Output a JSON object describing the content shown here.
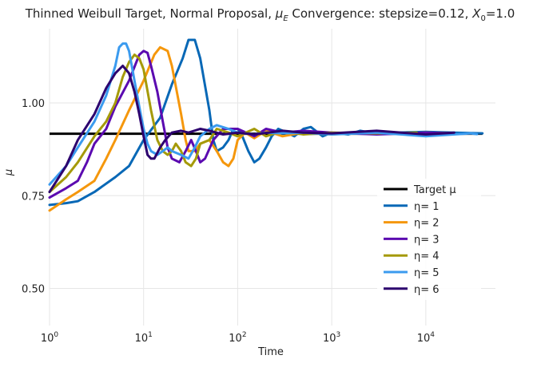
{
  "chart_data": {
    "type": "line",
    "title": {
      "prefix": "Thinned Weibull Target, Normal Proposal, ",
      "mu_symbol": "μ",
      "mu_subscript": "E",
      "middle": " Convergence: stepsize=0.12, ",
      "x_symbol": "X",
      "x_subscript": "0",
      "suffix": "=1.0"
    },
    "xlabel": "Time",
    "ylabel": "μ",
    "x_scale": "log",
    "xlim": [
      1,
      55000
    ],
    "ylim": [
      0.4,
      1.2
    ],
    "x_ticks": [
      {
        "value": 1,
        "base": "10",
        "exp": "0"
      },
      {
        "value": 10,
        "base": "10",
        "exp": "1"
      },
      {
        "value": 100,
        "base": "10",
        "exp": "2"
      },
      {
        "value": 1000,
        "base": "10",
        "exp": "3"
      },
      {
        "value": 10000,
        "base": "10",
        "exp": "4"
      }
    ],
    "y_ticks": [
      {
        "value": 0.5,
        "label": "0.50"
      },
      {
        "value": 0.75,
        "label": "0.75"
      },
      {
        "value": 1.0,
        "label": "1.00"
      }
    ],
    "grid": true,
    "legend_position": "lower-right",
    "target": {
      "name": "Target μ",
      "value": 0.917,
      "x_range": [
        1,
        40000
      ],
      "color": "#000000"
    },
    "series": [
      {
        "name": "η= 1",
        "color": "#0868b6",
        "points": [
          [
            1,
            0.725
          ],
          [
            1.5,
            0.73
          ],
          [
            2,
            0.735
          ],
          [
            3,
            0.76
          ],
          [
            5,
            0.8
          ],
          [
            7,
            0.83
          ],
          [
            10,
            0.9
          ],
          [
            15,
            0.96
          ],
          [
            20,
            1.05
          ],
          [
            26,
            1.12
          ],
          [
            30,
            1.17
          ],
          [
            35,
            1.17
          ],
          [
            40,
            1.12
          ],
          [
            50,
            0.98
          ],
          [
            55,
            0.9
          ],
          [
            60,
            0.87
          ],
          [
            70,
            0.88
          ],
          [
            80,
            0.9
          ],
          [
            90,
            0.93
          ],
          [
            100,
            0.93
          ],
          [
            110,
            0.915
          ],
          [
            130,
            0.87
          ],
          [
            150,
            0.84
          ],
          [
            170,
            0.85
          ],
          [
            200,
            0.88
          ],
          [
            230,
            0.91
          ],
          [
            270,
            0.93
          ],
          [
            300,
            0.925
          ],
          [
            400,
            0.91
          ],
          [
            500,
            0.93
          ],
          [
            600,
            0.935
          ],
          [
            800,
            0.91
          ],
          [
            1000,
            0.92
          ],
          [
            1500,
            0.915
          ],
          [
            2000,
            0.925
          ],
          [
            3000,
            0.917
          ],
          [
            5000,
            0.92
          ],
          [
            10000,
            0.922
          ],
          [
            20000,
            0.92
          ],
          [
            40000,
            0.918
          ]
        ]
      },
      {
        "name": "η= 2",
        "color": "#f5970c",
        "points": [
          [
            1,
            0.71
          ],
          [
            1.5,
            0.74
          ],
          [
            2,
            0.76
          ],
          [
            3,
            0.79
          ],
          [
            4,
            0.85
          ],
          [
            5,
            0.9
          ],
          [
            7,
            0.98
          ],
          [
            10,
            1.06
          ],
          [
            13,
            1.13
          ],
          [
            15,
            1.15
          ],
          [
            18,
            1.14
          ],
          [
            20,
            1.1
          ],
          [
            25,
            0.97
          ],
          [
            28,
            0.9
          ],
          [
            30,
            0.87
          ],
          [
            35,
            0.87
          ],
          [
            40,
            0.89
          ],
          [
            50,
            0.9
          ],
          [
            60,
            0.87
          ],
          [
            70,
            0.84
          ],
          [
            80,
            0.83
          ],
          [
            90,
            0.85
          ],
          [
            100,
            0.9
          ],
          [
            120,
            0.92
          ],
          [
            150,
            0.905
          ],
          [
            200,
            0.925
          ],
          [
            300,
            0.91
          ],
          [
            500,
            0.92
          ],
          [
            1000,
            0.915
          ],
          [
            2000,
            0.92
          ],
          [
            5000,
            0.917
          ],
          [
            10000,
            0.92
          ],
          [
            20000,
            0.918
          ]
        ]
      },
      {
        "name": "η= 3",
        "color": "#5b0ab0",
        "points": [
          [
            1,
            0.745
          ],
          [
            1.5,
            0.77
          ],
          [
            2,
            0.79
          ],
          [
            2.5,
            0.84
          ],
          [
            3,
            0.89
          ],
          [
            4,
            0.93
          ],
          [
            5,
            0.99
          ],
          [
            7,
            1.06
          ],
          [
            9,
            1.13
          ],
          [
            10,
            1.14
          ],
          [
            11,
            1.135
          ],
          [
            12,
            1.1
          ],
          [
            14,
            1.03
          ],
          [
            16,
            0.95
          ],
          [
            18,
            0.88
          ],
          [
            20,
            0.85
          ],
          [
            24,
            0.84
          ],
          [
            28,
            0.87
          ],
          [
            32,
            0.9
          ],
          [
            36,
            0.87
          ],
          [
            40,
            0.84
          ],
          [
            45,
            0.85
          ],
          [
            55,
            0.9
          ],
          [
            70,
            0.93
          ],
          [
            100,
            0.93
          ],
          [
            150,
            0.91
          ],
          [
            200,
            0.93
          ],
          [
            300,
            0.92
          ],
          [
            500,
            0.925
          ],
          [
            1000,
            0.92
          ],
          [
            3000,
            0.915
          ],
          [
            10000,
            0.92
          ],
          [
            20000,
            0.918
          ]
        ]
      },
      {
        "name": "η= 4",
        "color": "#a59a09",
        "points": [
          [
            1,
            0.76
          ],
          [
            1.5,
            0.8
          ],
          [
            2,
            0.84
          ],
          [
            3,
            0.91
          ],
          [
            4,
            0.95
          ],
          [
            5,
            1.0
          ],
          [
            6,
            1.07
          ],
          [
            7,
            1.11
          ],
          [
            8,
            1.13
          ],
          [
            9,
            1.12
          ],
          [
            10,
            1.09
          ],
          [
            12,
            0.98
          ],
          [
            14,
            0.9
          ],
          [
            16,
            0.87
          ],
          [
            18,
            0.86
          ],
          [
            20,
            0.87
          ],
          [
            22,
            0.89
          ],
          [
            25,
            0.87
          ],
          [
            28,
            0.84
          ],
          [
            32,
            0.83
          ],
          [
            36,
            0.85
          ],
          [
            40,
            0.89
          ],
          [
            50,
            0.9
          ],
          [
            60,
            0.93
          ],
          [
            80,
            0.92
          ],
          [
            100,
            0.91
          ],
          [
            150,
            0.93
          ],
          [
            200,
            0.91
          ],
          [
            300,
            0.925
          ],
          [
            500,
            0.915
          ],
          [
            1000,
            0.92
          ],
          [
            3000,
            0.918
          ],
          [
            8000,
            0.92
          ]
        ]
      },
      {
        "name": "η= 5",
        "color": "#3b9bef",
        "points": [
          [
            1,
            0.78
          ],
          [
            1.5,
            0.83
          ],
          [
            2,
            0.88
          ],
          [
            3,
            0.95
          ],
          [
            4,
            1.02
          ],
          [
            5,
            1.1
          ],
          [
            5.5,
            1.15
          ],
          [
            6,
            1.16
          ],
          [
            6.5,
            1.16
          ],
          [
            7,
            1.14
          ],
          [
            8,
            1.06
          ],
          [
            9,
            0.99
          ],
          [
            10,
            0.93
          ],
          [
            11,
            0.89
          ],
          [
            12,
            0.87
          ],
          [
            14,
            0.86
          ],
          [
            16,
            0.87
          ],
          [
            18,
            0.88
          ],
          [
            20,
            0.87
          ],
          [
            25,
            0.86
          ],
          [
            30,
            0.85
          ],
          [
            35,
            0.88
          ],
          [
            40,
            0.91
          ],
          [
            50,
            0.93
          ],
          [
            60,
            0.94
          ],
          [
            80,
            0.93
          ],
          [
            100,
            0.92
          ],
          [
            150,
            0.915
          ],
          [
            200,
            0.92
          ],
          [
            300,
            0.918
          ],
          [
            500,
            0.92
          ],
          [
            1000,
            0.915
          ],
          [
            3000,
            0.92
          ],
          [
            10000,
            0.91
          ],
          [
            30000,
            0.918
          ],
          [
            35000,
            0.916
          ]
        ]
      },
      {
        "name": "η= 6",
        "color": "#2c006e",
        "points": [
          [
            1,
            0.76
          ],
          [
            1.5,
            0.83
          ],
          [
            2,
            0.9
          ],
          [
            3,
            0.97
          ],
          [
            4,
            1.04
          ],
          [
            5,
            1.08
          ],
          [
            6,
            1.1
          ],
          [
            7,
            1.08
          ],
          [
            8,
            1.03
          ],
          [
            9,
            0.97
          ],
          [
            10,
            0.91
          ],
          [
            11,
            0.86
          ],
          [
            12,
            0.85
          ],
          [
            13,
            0.85
          ],
          [
            15,
            0.88
          ],
          [
            17,
            0.9
          ],
          [
            20,
            0.92
          ],
          [
            25,
            0.925
          ],
          [
            30,
            0.92
          ],
          [
            40,
            0.93
          ],
          [
            50,
            0.925
          ],
          [
            70,
            0.915
          ],
          [
            100,
            0.92
          ],
          [
            150,
            0.915
          ],
          [
            300,
            0.925
          ],
          [
            500,
            0.92
          ],
          [
            1000,
            0.918
          ],
          [
            3000,
            0.925
          ],
          [
            10000,
            0.915
          ],
          [
            20000,
            0.92
          ]
        ]
      }
    ]
  }
}
